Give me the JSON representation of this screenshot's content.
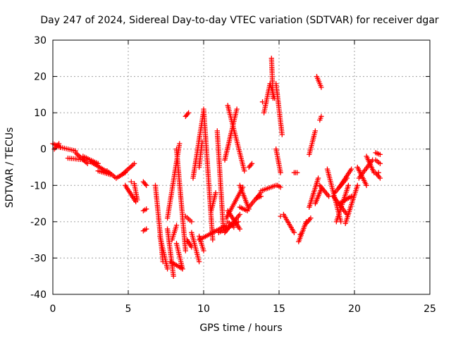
{
  "chart_data": {
    "type": "scatter",
    "title": "Day 247 of 2024, Sidereal Day-to-day VTEC variation (SDTVAR) for receiver dgar",
    "xlabel": "GPS time / hours",
    "ylabel": "SDTVAR / TECUs",
    "xlim": [
      0,
      25
    ],
    "ylim": [
      -40,
      30
    ],
    "x_ticks": [
      0,
      5,
      10,
      15,
      20,
      25
    ],
    "y_ticks": [
      -40,
      -30,
      -20,
      -10,
      0,
      10,
      20,
      30
    ],
    "grid": true,
    "marker": "+",
    "marker_color": "#ff0000",
    "tracks": [
      {
        "from": [
          0.0,
          1.5
        ],
        "to": [
          0.5,
          0.5
        ]
      },
      {
        "from": [
          0.1,
          0.0
        ],
        "to": [
          0.4,
          1.5
        ]
      },
      {
        "from": [
          0.4,
          0.6
        ],
        "to": [
          1.5,
          -0.5
        ]
      },
      {
        "from": [
          1.5,
          -1.0
        ],
        "to": [
          2.3,
          -4.0
        ]
      },
      {
        "from": [
          2.0,
          -2.0
        ],
        "to": [
          3.0,
          -4.0
        ]
      },
      {
        "from": [
          1.0,
          -2.5
        ],
        "to": [
          2.2,
          -3.0
        ]
      },
      {
        "from": [
          2.5,
          -3.5
        ],
        "to": [
          3.7,
          -6.5
        ]
      },
      {
        "from": [
          3.0,
          -6.0
        ],
        "to": [
          3.8,
          -7.0
        ]
      },
      {
        "from": [
          3.6,
          -6.0
        ],
        "to": [
          4.2,
          -8.0
        ]
      },
      {
        "from": [
          4.2,
          -8.0
        ],
        "to": [
          4.8,
          -6.5
        ]
      },
      {
        "from": [
          4.6,
          -7.0
        ],
        "to": [
          5.4,
          -4.0
        ]
      },
      {
        "from": [
          4.8,
          -10.0
        ],
        "to": [
          5.5,
          -14.5
        ]
      },
      {
        "from": [
          5.4,
          -9.5
        ],
        "to": [
          5.6,
          -14.0
        ]
      },
      {
        "from": [
          6.0,
          -17.0
        ],
        "to": [
          6.2,
          -16.5
        ]
      },
      {
        "from": [
          6.0,
          -22.5
        ],
        "to": [
          6.2,
          -22.0
        ]
      },
      {
        "from": [
          6.0,
          -9.0
        ],
        "to": [
          6.2,
          -10.0
        ]
      },
      {
        "from": [
          6.8,
          -10.0
        ],
        "to": [
          7.3,
          -31.0
        ]
      },
      {
        "from": [
          7.1,
          -24.0
        ],
        "to": [
          7.6,
          -33.0
        ]
      },
      {
        "from": [
          7.6,
          -22.0
        ],
        "to": [
          8.0,
          -35.0
        ]
      },
      {
        "from": [
          7.8,
          -31.0
        ],
        "to": [
          8.6,
          -33.0
        ]
      },
      {
        "from": [
          7.9,
          -25.0
        ],
        "to": [
          8.2,
          -21.0
        ]
      },
      {
        "from": [
          7.6,
          -19.0
        ],
        "to": [
          8.4,
          1.5
        ]
      },
      {
        "from": [
          8.2,
          0.0
        ],
        "to": [
          8.8,
          -28.0
        ]
      },
      {
        "from": [
          8.2,
          -26.0
        ],
        "to": [
          8.6,
          -33.0
        ]
      },
      {
        "from": [
          8.8,
          -18.5
        ],
        "to": [
          9.2,
          -20.0
        ]
      },
      {
        "from": [
          8.8,
          9.0
        ],
        "to": [
          9.0,
          10.0
        ]
      },
      {
        "from": [
          8.9,
          -25.0
        ],
        "to": [
          9.2,
          -27.0
        ]
      },
      {
        "from": [
          9.2,
          -23.0
        ],
        "to": [
          9.7,
          -31.0
        ]
      },
      {
        "from": [
          9.3,
          -8.0
        ],
        "to": [
          10.0,
          10.5
        ]
      },
      {
        "from": [
          9.7,
          -24.0
        ],
        "to": [
          10.0,
          -28.0
        ]
      },
      {
        "from": [
          9.7,
          -5.0
        ],
        "to": [
          9.9,
          2.0
        ]
      },
      {
        "from": [
          9.7,
          -25.0
        ],
        "to": [
          11.5,
          -21.0
        ]
      },
      {
        "from": [
          10.0,
          11.0
        ],
        "to": [
          10.6,
          -25.0
        ]
      },
      {
        "from": [
          10.5,
          -17.0
        ],
        "to": [
          10.8,
          -12.0
        ]
      },
      {
        "from": [
          10.9,
          5.0
        ],
        "to": [
          11.3,
          -21.5
        ]
      },
      {
        "from": [
          11.0,
          -23.0
        ],
        "to": [
          12.3,
          -20.0
        ]
      },
      {
        "from": [
          11.5,
          -19.0
        ],
        "to": [
          12.6,
          -10.5
        ]
      },
      {
        "from": [
          11.6,
          12.0
        ],
        "to": [
          12.7,
          -6.0
        ]
      },
      {
        "from": [
          11.4,
          -3.0
        ],
        "to": [
          12.2,
          11.0
        ]
      },
      {
        "from": [
          11.6,
          -20.0
        ],
        "to": [
          12.0,
          -21.5
        ]
      },
      {
        "from": [
          11.4,
          -23.0
        ],
        "to": [
          12.4,
          -18.0
        ]
      },
      {
        "from": [
          11.6,
          -17.0
        ],
        "to": [
          12.4,
          -22.0
        ]
      },
      {
        "from": [
          12.4,
          -16.0
        ],
        "to": [
          12.9,
          -17.0
        ]
      },
      {
        "from": [
          12.4,
          -10.0
        ],
        "to": [
          13.0,
          -16.5
        ]
      },
      {
        "from": [
          13.0,
          -16.0
        ],
        "to": [
          13.8,
          -12.0
        ]
      },
      {
        "from": [
          13.0,
          -5.0
        ],
        "to": [
          13.2,
          -4.0
        ]
      },
      {
        "from": [
          13.5,
          -13.5
        ],
        "to": [
          13.8,
          -13.0
        ]
      },
      {
        "from": [
          13.8,
          -11.5
        ],
        "to": [
          14.8,
          -10.0
        ]
      },
      {
        "from": [
          14.0,
          10.0
        ],
        "to": [
          14.4,
          18.0
        ]
      },
      {
        "from": [
          14.4,
          18.0
        ],
        "to": [
          14.7,
          14.0
        ]
      },
      {
        "from": [
          14.5,
          25.0
        ],
        "to": [
          14.6,
          14.0
        ]
      },
      {
        "from": [
          14.8,
          0.0
        ],
        "to": [
          15.1,
          -6.5
        ]
      },
      {
        "from": [
          14.9,
          -10.0
        ],
        "to": [
          15.1,
          -10.5
        ]
      },
      {
        "from": [
          14.8,
          18.0
        ],
        "to": [
          15.2,
          4.0
        ]
      },
      {
        "from": [
          15.3,
          -18.0
        ],
        "to": [
          16.0,
          -23.0
        ]
      },
      {
        "from": [
          16.0,
          -6.5
        ],
        "to": [
          16.2,
          -6.5
        ]
      },
      {
        "from": [
          16.3,
          -25.5
        ],
        "to": [
          16.8,
          -20.0
        ]
      },
      {
        "from": [
          16.8,
          -20.5
        ],
        "to": [
          17.1,
          -19.0
        ]
      },
      {
        "from": [
          17.0,
          -16.0
        ],
        "to": [
          17.6,
          -8.0
        ]
      },
      {
        "from": [
          17.0,
          -1.5
        ],
        "to": [
          17.4,
          5.0
        ]
      },
      {
        "from": [
          17.5,
          20.0
        ],
        "to": [
          17.8,
          17.0
        ]
      },
      {
        "from": [
          17.7,
          8.0
        ],
        "to": [
          17.8,
          9.0
        ]
      },
      {
        "from": [
          17.4,
          -15.0
        ],
        "to": [
          17.8,
          -11.0
        ]
      },
      {
        "from": [
          17.7,
          -10.0
        ],
        "to": [
          18.3,
          -13.0
        ]
      },
      {
        "from": [
          18.2,
          -5.5
        ],
        "to": [
          19.1,
          -20.0
        ]
      },
      {
        "from": [
          18.6,
          -13.0
        ],
        "to": [
          19.5,
          -18.0
        ]
      },
      {
        "from": [
          18.8,
          -20.0
        ],
        "to": [
          19.6,
          -10.0
        ]
      },
      {
        "from": [
          18.7,
          -12.0
        ],
        "to": [
          19.5,
          -8.0
        ]
      },
      {
        "from": [
          19.0,
          -10.5
        ],
        "to": [
          19.8,
          -5.5
        ]
      },
      {
        "from": [
          19.4,
          -20.5
        ],
        "to": [
          20.2,
          -10.0
        ]
      },
      {
        "from": [
          19.0,
          -15.0
        ],
        "to": [
          19.8,
          -13.0
        ]
      },
      {
        "from": [
          20.2,
          -5.0
        ],
        "to": [
          20.8,
          -10.0
        ]
      },
      {
        "from": [
          20.3,
          -8.0
        ],
        "to": [
          21.2,
          -3.0
        ]
      },
      {
        "from": [
          20.8,
          -2.0
        ],
        "to": [
          21.3,
          -6.5
        ]
      },
      {
        "from": [
          21.4,
          -1.0
        ],
        "to": [
          21.7,
          -1.5
        ]
      },
      {
        "from": [
          21.4,
          -3.0
        ],
        "to": [
          21.7,
          -4.0
        ]
      },
      {
        "from": [
          21.4,
          -6.5
        ],
        "to": [
          21.7,
          -8.0
        ]
      }
    ],
    "points": [
      [
        5.2,
        -9.0
      ],
      [
        13.9,
        13.0
      ],
      [
        15.1,
        -18.5
      ],
      [
        16.4,
        -23.5
      ],
      [
        21.6,
        -6.5
      ]
    ]
  }
}
